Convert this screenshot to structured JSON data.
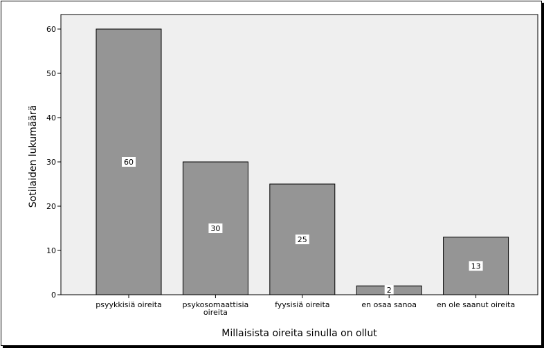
{
  "chart_data": {
    "type": "bar",
    "title": "",
    "xlabel": "Millaisista oireita sinulla on ollut",
    "ylabel": "Sotilaiden lukumäärä",
    "categories": [
      [
        "psyykkisiä oireita"
      ],
      [
        "psykosomaattisia",
        "oireita"
      ],
      [
        "fyysisiä oireita"
      ],
      [
        "en osaa sanoa"
      ],
      [
        "en ole saanut oireita"
      ]
    ],
    "values": [
      60,
      30,
      25,
      2,
      13
    ],
    "data_labels": [
      "60",
      "30",
      "25",
      "2",
      "13"
    ],
    "yticks": [
      "0",
      "10",
      "20",
      "30",
      "40",
      "50",
      "60"
    ],
    "ylim": [
      0,
      63
    ],
    "grid": false,
    "legend": "none",
    "colors": {
      "bar_fill": "#959595",
      "plot_background": "#efefef",
      "axis": "#000000"
    }
  }
}
